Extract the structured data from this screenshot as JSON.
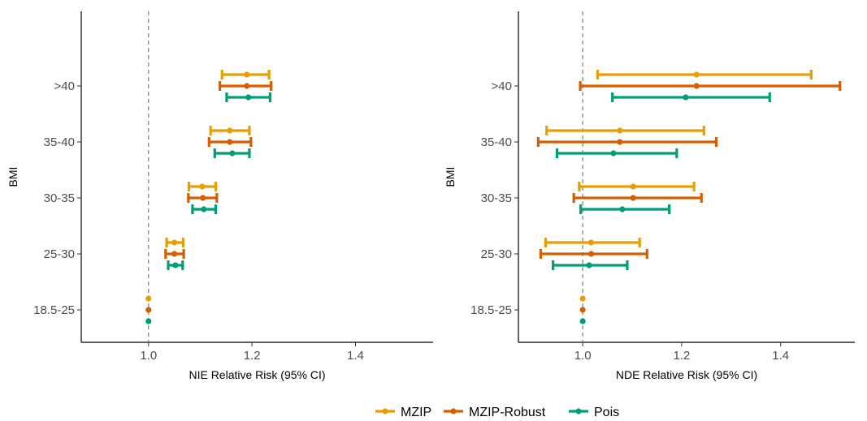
{
  "colors": {
    "MZIP": "#E69F00",
    "MZIP-Robust": "#D55E00",
    "Pois": "#009E73"
  },
  "legend": {
    "placement": "bottom",
    "items": [
      "MZIP",
      "MZIP-Robust",
      "Pois"
    ]
  },
  "chart_data": [
    {
      "type": "errorbar",
      "xlabel": "NIE Relative Risk (95% CI)",
      "ylabel": "BMI",
      "categories": [
        "18.5-25",
        "25-30",
        "30-35",
        "35-40",
        ">40"
      ],
      "xlim": [
        0.87,
        1.55
      ],
      "xticks": [
        1.0,
        1.2,
        1.4
      ],
      "xtick_labels": [
        "1.0",
        "1.2",
        "1.4"
      ],
      "reference_line": 1.0,
      "grid": false,
      "series": [
        {
          "name": "MZIP",
          "points": [
            {
              "category": "18.5-25",
              "est": 1.0,
              "lo": 1.0,
              "hi": 1.0
            },
            {
              "category": "25-30",
              "est": 1.05,
              "lo": 1.035,
              "hi": 1.067
            },
            {
              "category": "30-35",
              "est": 1.104,
              "lo": 1.078,
              "hi": 1.13
            },
            {
              "category": "35-40",
              "est": 1.157,
              "lo": 1.12,
              "hi": 1.195
            },
            {
              "category": ">40",
              "est": 1.19,
              "lo": 1.142,
              "hi": 1.233
            }
          ]
        },
        {
          "name": "MZIP-Robust",
          "points": [
            {
              "category": "18.5-25",
              "est": 1.0,
              "lo": 1.0,
              "hi": 1.0
            },
            {
              "category": "25-30",
              "est": 1.05,
              "lo": 1.033,
              "hi": 1.068
            },
            {
              "category": "30-35",
              "est": 1.105,
              "lo": 1.077,
              "hi": 1.132
            },
            {
              "category": "35-40",
              "est": 1.157,
              "lo": 1.117,
              "hi": 1.198
            },
            {
              "category": ">40",
              "est": 1.19,
              "lo": 1.138,
              "hi": 1.237
            }
          ]
        },
        {
          "name": "Pois",
          "points": [
            {
              "category": "18.5-25",
              "est": 1.0,
              "lo": 1.0,
              "hi": 1.0
            },
            {
              "category": "25-30",
              "est": 1.052,
              "lo": 1.038,
              "hi": 1.066
            },
            {
              "category": "30-35",
              "est": 1.107,
              "lo": 1.085,
              "hi": 1.13
            },
            {
              "category": "35-40",
              "est": 1.162,
              "lo": 1.128,
              "hi": 1.195
            },
            {
              "category": ">40",
              "est": 1.193,
              "lo": 1.151,
              "hi": 1.235
            }
          ]
        }
      ]
    },
    {
      "type": "errorbar",
      "xlabel": "NDE Relative Risk (95% CI)",
      "ylabel": "BMI",
      "categories": [
        "18.5-25",
        "25-30",
        "30-35",
        "35-40",
        ">40"
      ],
      "xlim": [
        0.87,
        1.55
      ],
      "xticks": [
        1.0,
        1.2,
        1.4
      ],
      "xtick_labels": [
        "1.0",
        "1.2",
        "1.4"
      ],
      "reference_line": 1.0,
      "grid": false,
      "series": [
        {
          "name": "MZIP",
          "points": [
            {
              "category": "18.5-25",
              "est": 1.0,
              "lo": 1.0,
              "hi": 1.0
            },
            {
              "category": "25-30",
              "est": 1.017,
              "lo": 0.925,
              "hi": 1.115
            },
            {
              "category": "30-35",
              "est": 1.102,
              "lo": 0.993,
              "hi": 1.225
            },
            {
              "category": "35-40",
              "est": 1.075,
              "lo": 0.927,
              "hi": 1.245
            },
            {
              "category": ">40",
              "est": 1.23,
              "lo": 1.03,
              "hi": 1.462
            }
          ]
        },
        {
          "name": "MZIP-Robust",
          "points": [
            {
              "category": "18.5-25",
              "est": 1.0,
              "lo": 1.0,
              "hi": 1.0
            },
            {
              "category": "25-30",
              "est": 1.017,
              "lo": 0.915,
              "hi": 1.13
            },
            {
              "category": "30-35",
              "est": 1.102,
              "lo": 0.982,
              "hi": 1.24
            },
            {
              "category": "35-40",
              "est": 1.075,
              "lo": 0.91,
              "hi": 1.27
            },
            {
              "category": ">40",
              "est": 1.23,
              "lo": 0.995,
              "hi": 1.52
            }
          ]
        },
        {
          "name": "Pois",
          "points": [
            {
              "category": "18.5-25",
              "est": 1.0,
              "lo": 1.0,
              "hi": 1.0
            },
            {
              "category": "25-30",
              "est": 1.013,
              "lo": 0.94,
              "hi": 1.09
            },
            {
              "category": "30-35",
              "est": 1.08,
              "lo": 0.996,
              "hi": 1.175
            },
            {
              "category": "35-40",
              "est": 1.062,
              "lo": 0.948,
              "hi": 1.19
            },
            {
              "category": ">40",
              "est": 1.208,
              "lo": 1.06,
              "hi": 1.378
            }
          ]
        }
      ]
    }
  ]
}
